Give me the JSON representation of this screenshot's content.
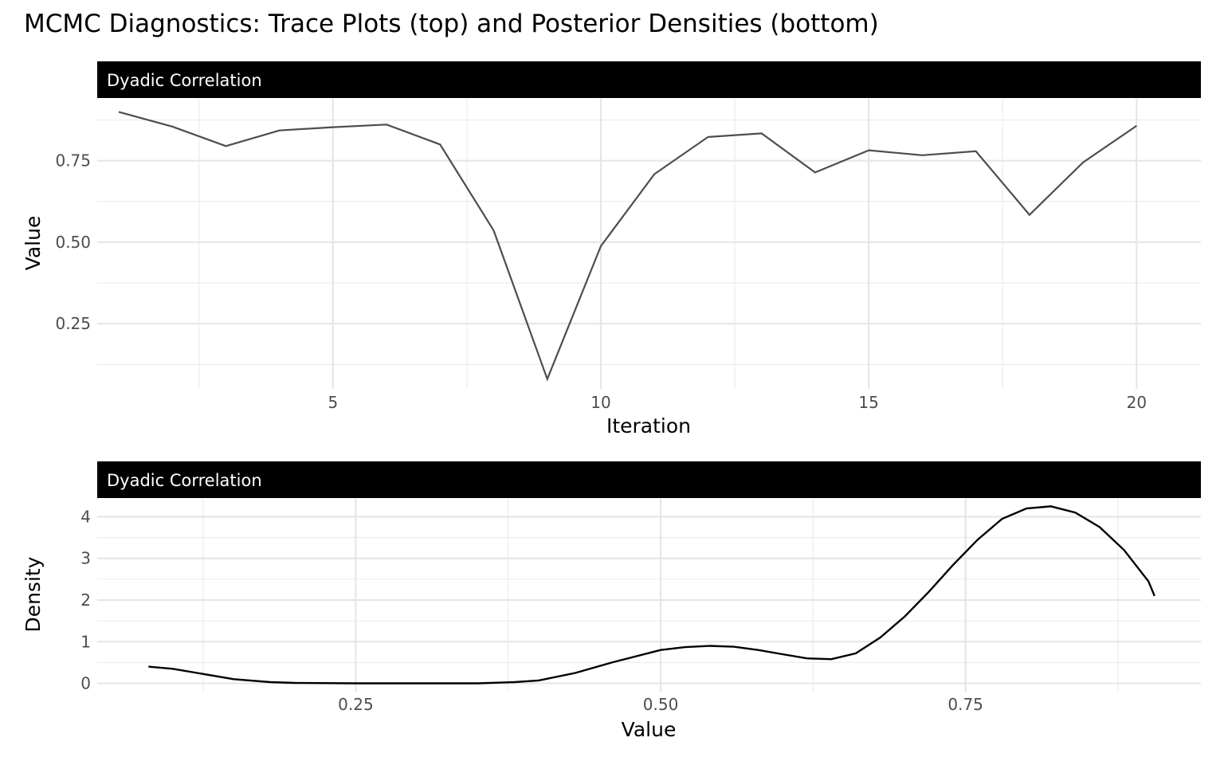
{
  "title": "MCMC Diagnostics: Trace Plots (top) and Posterior Densities (bottom)",
  "chart_data": [
    {
      "type": "line",
      "panel": "trace",
      "facet_label": "Dyadic Correlation",
      "xlabel": "Iteration",
      "ylabel": "Value",
      "xlim": [
        0.6,
        21.2
      ],
      "ylim": [
        0.05,
        0.94
      ],
      "x_ticks": [
        5,
        10,
        15,
        20
      ],
      "x_tick_labels": [
        "5",
        "10",
        "15",
        "20"
      ],
      "y_ticks": [
        0.25,
        0.5,
        0.75
      ],
      "y_tick_labels": [
        "0.25",
        "0.50",
        "0.75"
      ],
      "grid": true,
      "line_color": "#4d4d4d",
      "x": [
        1,
        2,
        3,
        4,
        5,
        6,
        7,
        8,
        9,
        10,
        11,
        12,
        13,
        14,
        15,
        16,
        17,
        18,
        19,
        20
      ],
      "y": [
        0.9,
        0.855,
        0.795,
        0.843,
        0.853,
        0.861,
        0.8,
        0.536,
        0.08,
        0.488,
        0.709,
        0.823,
        0.834,
        0.714,
        0.782,
        0.767,
        0.779,
        0.584,
        0.745,
        0.857
      ]
    },
    {
      "type": "line",
      "panel": "density",
      "facet_label": "Dyadic Correlation",
      "xlabel": "Value",
      "ylabel": "Density",
      "xlim": [
        0.038,
        0.943
      ],
      "ylim": [
        -0.2,
        4.43
      ],
      "x_ticks": [
        0.25,
        0.5,
        0.75
      ],
      "x_tick_labels": [
        "0.25",
        "0.50",
        "0.75"
      ],
      "y_ticks": [
        0,
        1,
        2,
        3,
        4
      ],
      "y_tick_labels": [
        "0",
        "1",
        "2",
        "3",
        "4"
      ],
      "grid": true,
      "line_color": "#000000",
      "x": [
        0.08,
        0.1,
        0.12,
        0.15,
        0.18,
        0.2,
        0.25,
        0.3,
        0.35,
        0.38,
        0.4,
        0.43,
        0.46,
        0.5,
        0.52,
        0.54,
        0.56,
        0.58,
        0.6,
        0.62,
        0.64,
        0.66,
        0.68,
        0.7,
        0.72,
        0.74,
        0.76,
        0.78,
        0.8,
        0.82,
        0.84,
        0.86,
        0.88,
        0.9,
        0.905
      ],
      "y": [
        0.4,
        0.35,
        0.25,
        0.1,
        0.03,
        0.01,
        0.0,
        0.0,
        0.0,
        0.03,
        0.07,
        0.25,
        0.5,
        0.8,
        0.87,
        0.9,
        0.88,
        0.8,
        0.7,
        0.6,
        0.58,
        0.72,
        1.1,
        1.6,
        2.2,
        2.85,
        3.45,
        3.95,
        4.2,
        4.25,
        4.1,
        3.75,
        3.2,
        2.45,
        2.1
      ]
    }
  ]
}
